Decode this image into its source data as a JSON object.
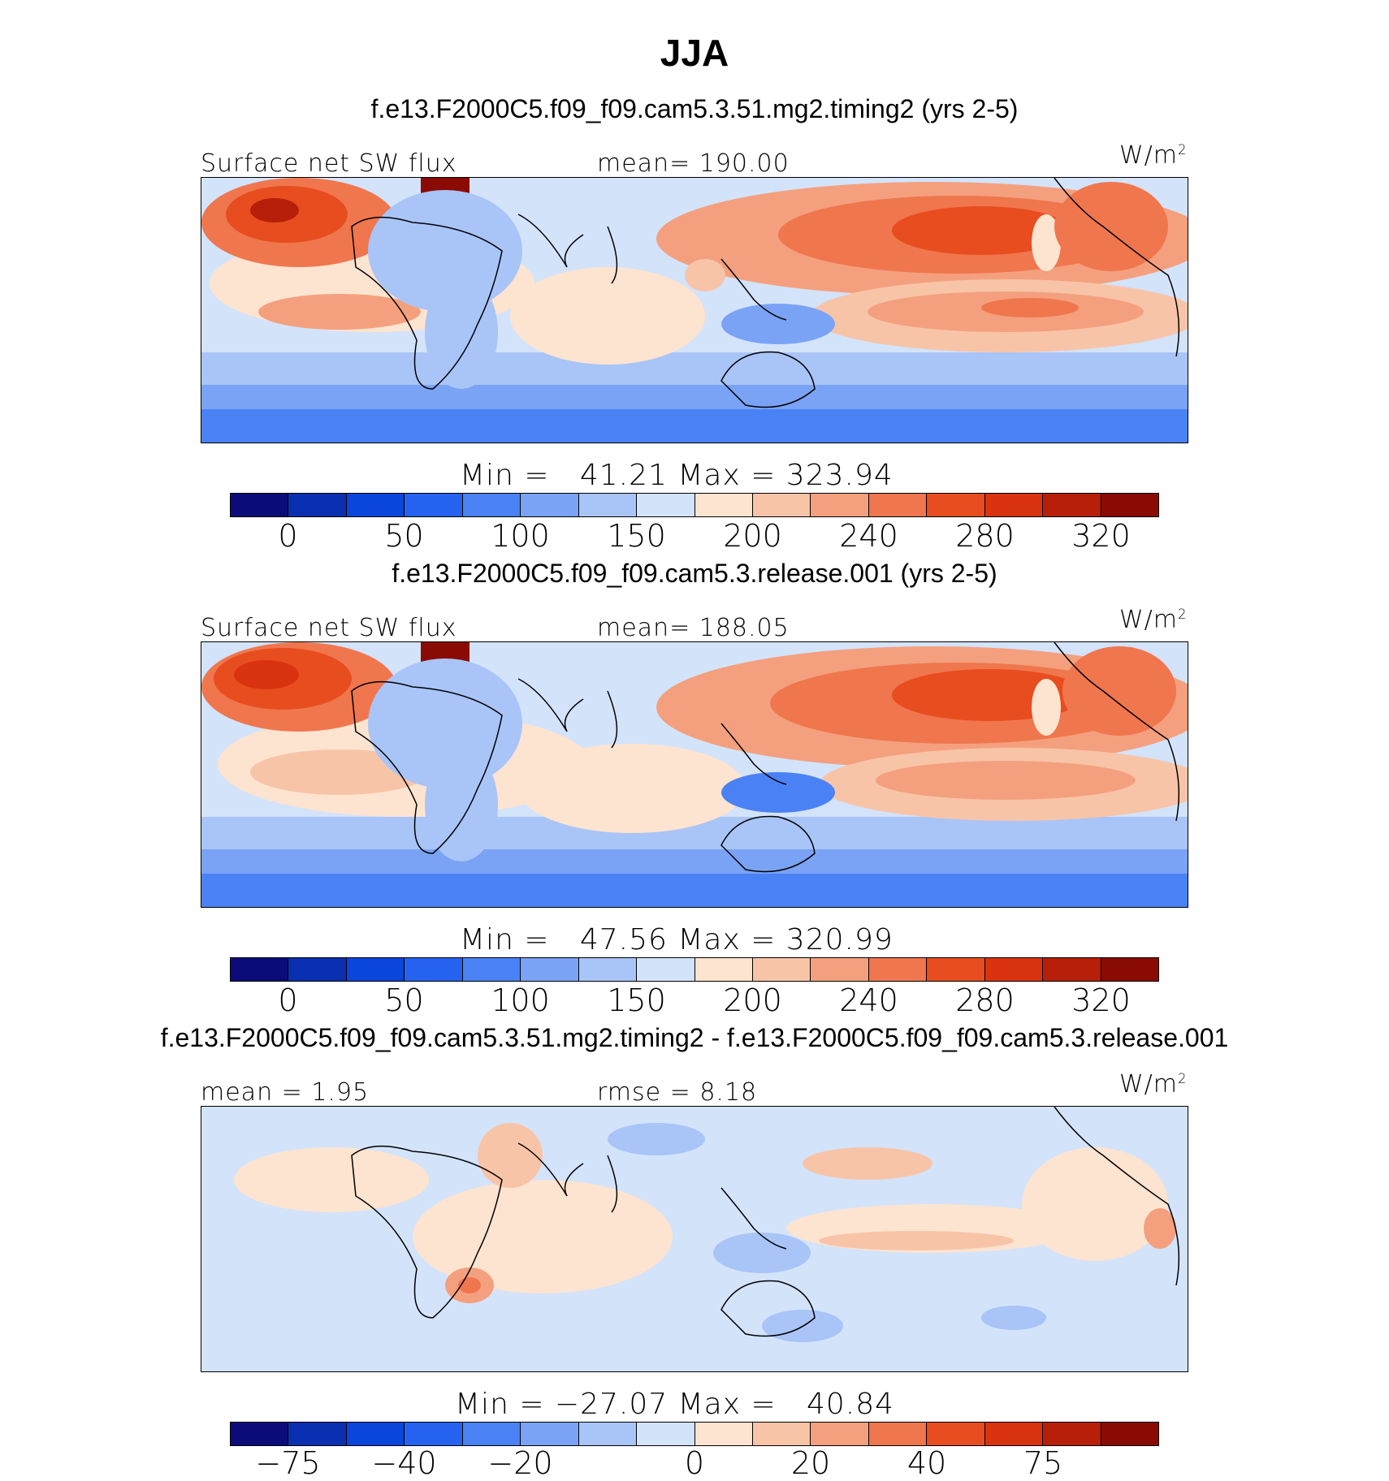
{
  "figure": {
    "season": "JJA"
  },
  "panels": [
    {
      "title": "f.e13.F2000C5.f09_f09.cam5.3.51.mg2.timing2 (yrs 2-5)",
      "left_label": "Surface net SW flux",
      "center_label": "mean= 190.00",
      "units": "W/m",
      "units_exp": "2",
      "min_max": "Min =   41.21 Max = 323.94",
      "colorbar_ticks": [
        "0",
        "50",
        "100",
        "150",
        "200",
        "240",
        "280",
        "320"
      ],
      "kind": "field"
    },
    {
      "title": "f.e13.F2000C5.f09_f09.cam5.3.release.001 (yrs 2-5)",
      "left_label": "Surface net SW flux",
      "center_label": "mean= 188.05",
      "units": "W/m",
      "units_exp": "2",
      "min_max": "Min =   47.56 Max = 320.99",
      "colorbar_ticks": [
        "0",
        "50",
        "100",
        "150",
        "200",
        "240",
        "280",
        "320"
      ],
      "kind": "field"
    },
    {
      "title": "f.e13.F2000C5.f09_f09.cam5.3.51.mg2.timing2 - f.e13.F2000C5.f09_f09.cam5.3.release.001",
      "left_label": "mean =    1.95",
      "center_label": "rmse =    8.18",
      "units": "W/m",
      "units_exp": "2",
      "min_max": "Min = −27.07 Max =   40.84",
      "colorbar_ticks": [
        "−75",
        "−40",
        "−20",
        "0",
        "20",
        "40",
        "75"
      ],
      "kind": "diff"
    }
  ],
  "colors": {
    "field_scale": [
      "#0b0c7a",
      "#0a2fb0",
      "#0a45dc",
      "#2563f0",
      "#4a82f5",
      "#7aa3f6",
      "#a9c4f7",
      "#d3e3fa",
      "#fde4d0",
      "#f8c4a8",
      "#f4a07e",
      "#f0764e",
      "#e84d1f",
      "#d9330f",
      "#b81f0a",
      "#8a0a04"
    ],
    "diff_scale": [
      "#0b0c7a",
      "#0a2fb0",
      "#0a45dc",
      "#2563f0",
      "#4a82f5",
      "#7aa3f6",
      "#a9c4f7",
      "#d3e3fa",
      "#fde4d0",
      "#f8c4a8",
      "#f4a07e",
      "#f0764e",
      "#e84d1f",
      "#d9330f",
      "#b81f0a",
      "#8a0a04"
    ]
  }
}
